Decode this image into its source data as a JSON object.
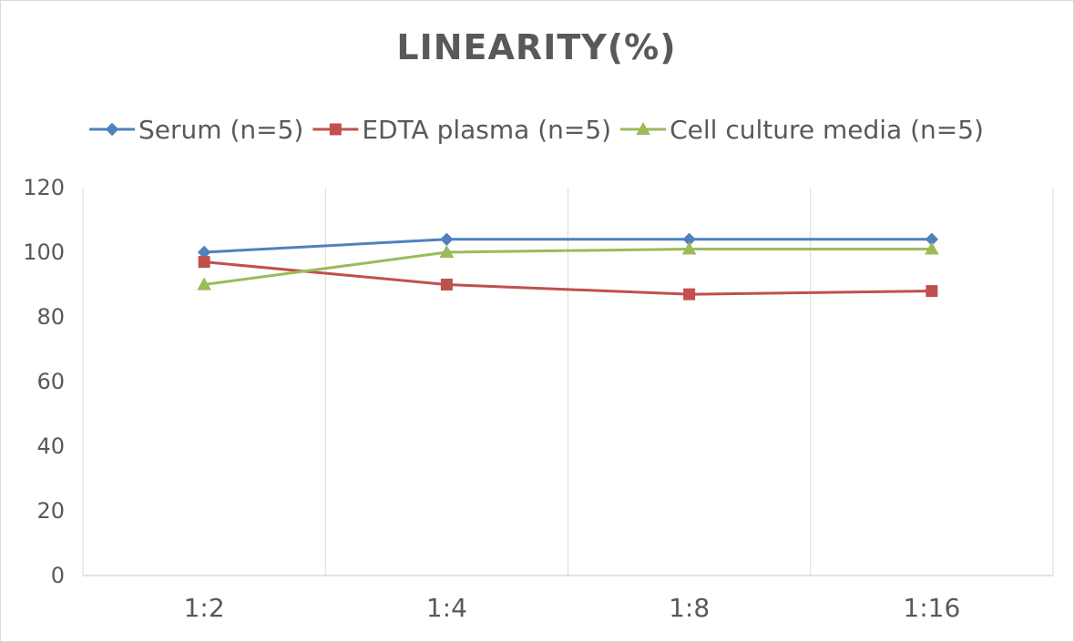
{
  "chart_data": {
    "type": "line",
    "title": "LINEARITY(%)",
    "categories": [
      "1:2",
      "1:4",
      "1:8",
      "1:16"
    ],
    "series": [
      {
        "name": "Serum (n=5)",
        "values": [
          100,
          104,
          104,
          104
        ],
        "color": "#4f81bd",
        "marker": "diamond"
      },
      {
        "name": "EDTA plasma (n=5)",
        "values": [
          97,
          90,
          87,
          88
        ],
        "color": "#c0504d",
        "marker": "square"
      },
      {
        "name": "Cell culture media (n=5)",
        "values": [
          90,
          100,
          101,
          101
        ],
        "color": "#9bbb59",
        "marker": "triangle"
      }
    ],
    "ylim": [
      0,
      120
    ],
    "yticks": [
      0,
      20,
      40,
      60,
      80,
      100,
      120
    ],
    "grid": "vertical",
    "legend": "top",
    "xlabel": "",
    "ylabel": ""
  }
}
